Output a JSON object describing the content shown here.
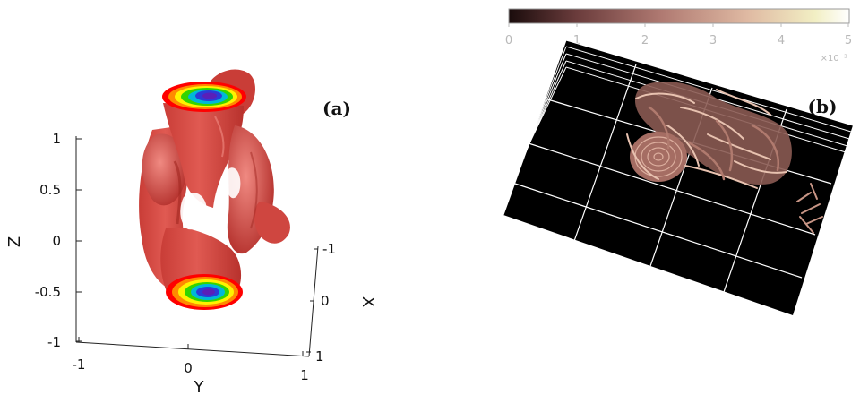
{
  "panel_a": {
    "label": "(a)",
    "y_axis": {
      "title": "Y",
      "ticks": [
        "-1",
        "0",
        "1"
      ]
    },
    "x_axis": {
      "title": "X",
      "ticks": [
        "-1",
        "0",
        "1"
      ]
    },
    "z_axis": {
      "title": "Z",
      "ticks": [
        "1",
        "0.5",
        "0",
        "-0.5",
        "-1"
      ]
    },
    "surface_color": "#d8463f",
    "cap_colors": [
      "#ff0000",
      "#ff9d00",
      "#fff200",
      "#34d400",
      "#00b8d8",
      "#2a3bd8",
      "#5a1fb8"
    ]
  },
  "panel_b": {
    "label": "(b)",
    "colorbar": {
      "ticks": [
        "0",
        "1",
        "2",
        "3",
        "4",
        "5"
      ],
      "exponent": "×10⁻³",
      "colors": [
        "#1a0c0c",
        "#6b3c3c",
        "#b07a72",
        "#dfb9a2",
        "#f2efc4",
        "#ffffff"
      ]
    },
    "background": "#000000",
    "grid_color": "#ffffff",
    "structure_color": "#c98e86"
  }
}
